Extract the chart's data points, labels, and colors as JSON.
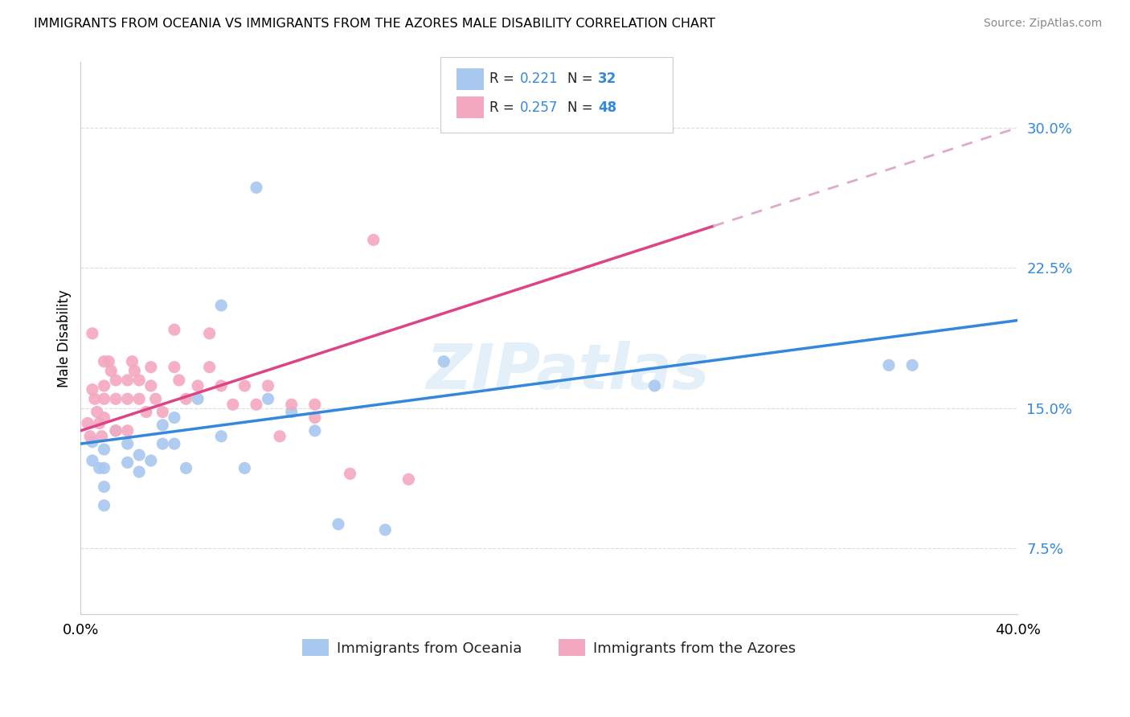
{
  "title": "IMMIGRANTS FROM OCEANIA VS IMMIGRANTS FROM THE AZORES MALE DISABILITY CORRELATION CHART",
  "source": "Source: ZipAtlas.com",
  "ylabel": "Male Disability",
  "y_ticks": [
    0.075,
    0.15,
    0.225,
    0.3
  ],
  "y_tick_labels": [
    "7.5%",
    "15.0%",
    "22.5%",
    "30.0%"
  ],
  "xlim": [
    0.0,
    0.4
  ],
  "ylim": [
    0.04,
    0.335
  ],
  "watermark": "ZIPatlas",
  "oceania_label": "Immigrants from Oceania",
  "azores_label": "Immigrants from the Azores",
  "oceania_R": "0.221",
  "oceania_N": "32",
  "azores_R": "0.257",
  "azores_N": "48",
  "oceania_color": "#a8c8f0",
  "azores_color": "#f4a8c0",
  "oceania_line_color": "#3388dd",
  "azores_line_color": "#dd4488",
  "trendline_dashed_color": "#ddaacc",
  "oceania_x": [
    0.005,
    0.005,
    0.008,
    0.01,
    0.01,
    0.01,
    0.01,
    0.015,
    0.02,
    0.02,
    0.025,
    0.025,
    0.03,
    0.035,
    0.035,
    0.04,
    0.04,
    0.045,
    0.05,
    0.06,
    0.06,
    0.07,
    0.075,
    0.08,
    0.09,
    0.1,
    0.11,
    0.13,
    0.155,
    0.245,
    0.345,
    0.355
  ],
  "oceania_y": [
    0.132,
    0.122,
    0.118,
    0.128,
    0.118,
    0.108,
    0.098,
    0.138,
    0.131,
    0.121,
    0.125,
    0.116,
    0.122,
    0.141,
    0.131,
    0.145,
    0.131,
    0.118,
    0.155,
    0.205,
    0.135,
    0.118,
    0.268,
    0.155,
    0.148,
    0.138,
    0.088,
    0.085,
    0.175,
    0.162,
    0.173,
    0.173
  ],
  "azores_x": [
    0.003,
    0.004,
    0.005,
    0.005,
    0.006,
    0.007,
    0.008,
    0.009,
    0.01,
    0.01,
    0.01,
    0.01,
    0.012,
    0.013,
    0.015,
    0.015,
    0.015,
    0.02,
    0.02,
    0.02,
    0.022,
    0.023,
    0.025,
    0.025,
    0.028,
    0.03,
    0.03,
    0.032,
    0.035,
    0.04,
    0.04,
    0.042,
    0.045,
    0.05,
    0.055,
    0.055,
    0.06,
    0.065,
    0.07,
    0.075,
    0.08,
    0.085,
    0.09,
    0.1,
    0.1,
    0.115,
    0.125,
    0.14
  ],
  "azores_y": [
    0.142,
    0.135,
    0.19,
    0.16,
    0.155,
    0.148,
    0.142,
    0.135,
    0.175,
    0.162,
    0.155,
    0.145,
    0.175,
    0.17,
    0.165,
    0.155,
    0.138,
    0.165,
    0.155,
    0.138,
    0.175,
    0.17,
    0.165,
    0.155,
    0.148,
    0.172,
    0.162,
    0.155,
    0.148,
    0.192,
    0.172,
    0.165,
    0.155,
    0.162,
    0.19,
    0.172,
    0.162,
    0.152,
    0.162,
    0.152,
    0.162,
    0.135,
    0.152,
    0.152,
    0.145,
    0.115,
    0.24,
    0.112
  ],
  "oceania_trend_x0": 0.0,
  "oceania_trend_x1": 0.4,
  "azores_trend_solid_x0": 0.0,
  "azores_trend_solid_x1": 0.27,
  "azores_trend_dashed_x0": 0.27,
  "azores_trend_dashed_x1": 0.4
}
